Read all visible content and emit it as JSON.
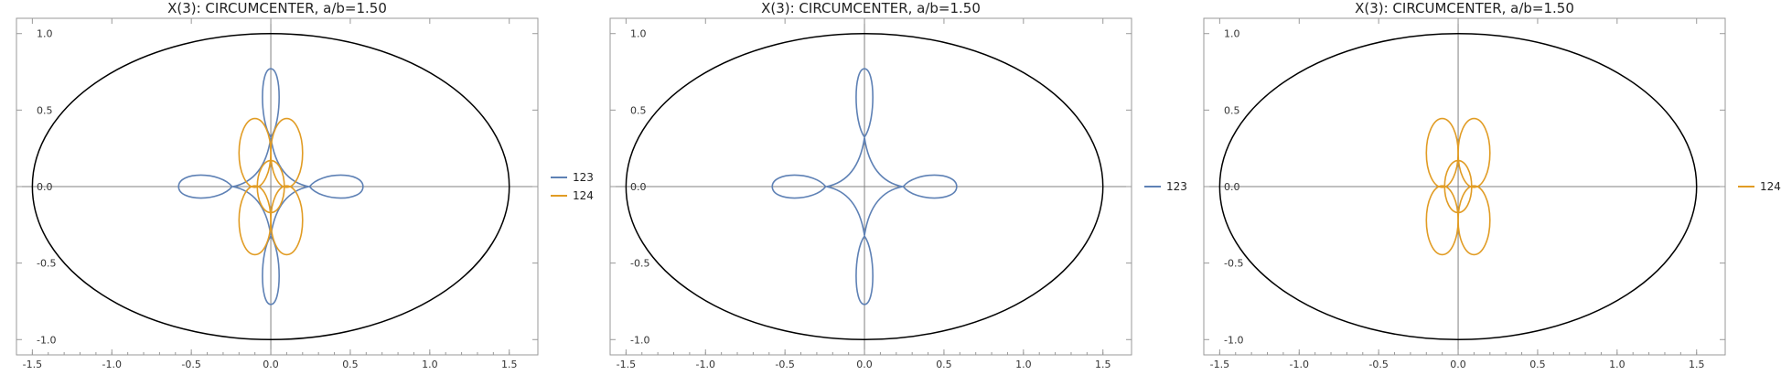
{
  "colors": {
    "curve_123": "#5e81b5",
    "curve_124": "#e19c24",
    "ellipse": "#000000",
    "axis": "#808080",
    "frame": "#999999"
  },
  "chart_data": [
    {
      "type": "line",
      "title": "X(3): CIRCUMCENTER, a/b=1.50",
      "xlim": [
        -1.6,
        1.68
      ],
      "ylim": [
        -1.1,
        1.1
      ],
      "xticks": [
        "-1.5",
        "-1.0",
        "-0.5",
        "0.0",
        "0.5",
        "1.0",
        "1.5"
      ],
      "yticks": [
        "-1.0",
        "-0.5",
        "0.0",
        "0.5",
        "1.0"
      ],
      "ellipse": {
        "a": 1.5,
        "b": 1.0
      },
      "series": [
        {
          "name": "123",
          "color": "#5e81b5",
          "curve": "123"
        },
        {
          "name": "124",
          "color": "#e19c24",
          "curve": "124"
        }
      ],
      "legend": "right"
    },
    {
      "type": "line",
      "title": "X(3): CIRCUMCENTER, a/b=1.50",
      "xlim": [
        -1.6,
        1.68
      ],
      "ylim": [
        -1.1,
        1.1
      ],
      "xticks": [
        "-1.5",
        "-1.0",
        "-0.5",
        "0.0",
        "0.5",
        "1.0",
        "1.5"
      ],
      "yticks": [
        "-1.0",
        "-0.5",
        "0.0",
        "0.5",
        "1.0"
      ],
      "ellipse": {
        "a": 1.5,
        "b": 1.0
      },
      "series": [
        {
          "name": "123",
          "color": "#5e81b5",
          "curve": "123"
        }
      ],
      "legend": "right"
    },
    {
      "type": "line",
      "title": "X(3): CIRCUMCENTER, a/b=1.50",
      "xlim": [
        -1.6,
        1.68
      ],
      "ylim": [
        -1.1,
        1.1
      ],
      "xticks": [
        "-1.5",
        "-1.0",
        "-0.5",
        "0.0",
        "0.5",
        "1.0",
        "1.5"
      ],
      "yticks": [
        "-1.0",
        "-0.5",
        "0.0",
        "0.5",
        "1.0"
      ],
      "ellipse": {
        "a": 1.5,
        "b": 1.0
      },
      "series": [
        {
          "name": "124",
          "color": "#e19c24",
          "curve": "124"
        }
      ],
      "legend": "right"
    }
  ]
}
